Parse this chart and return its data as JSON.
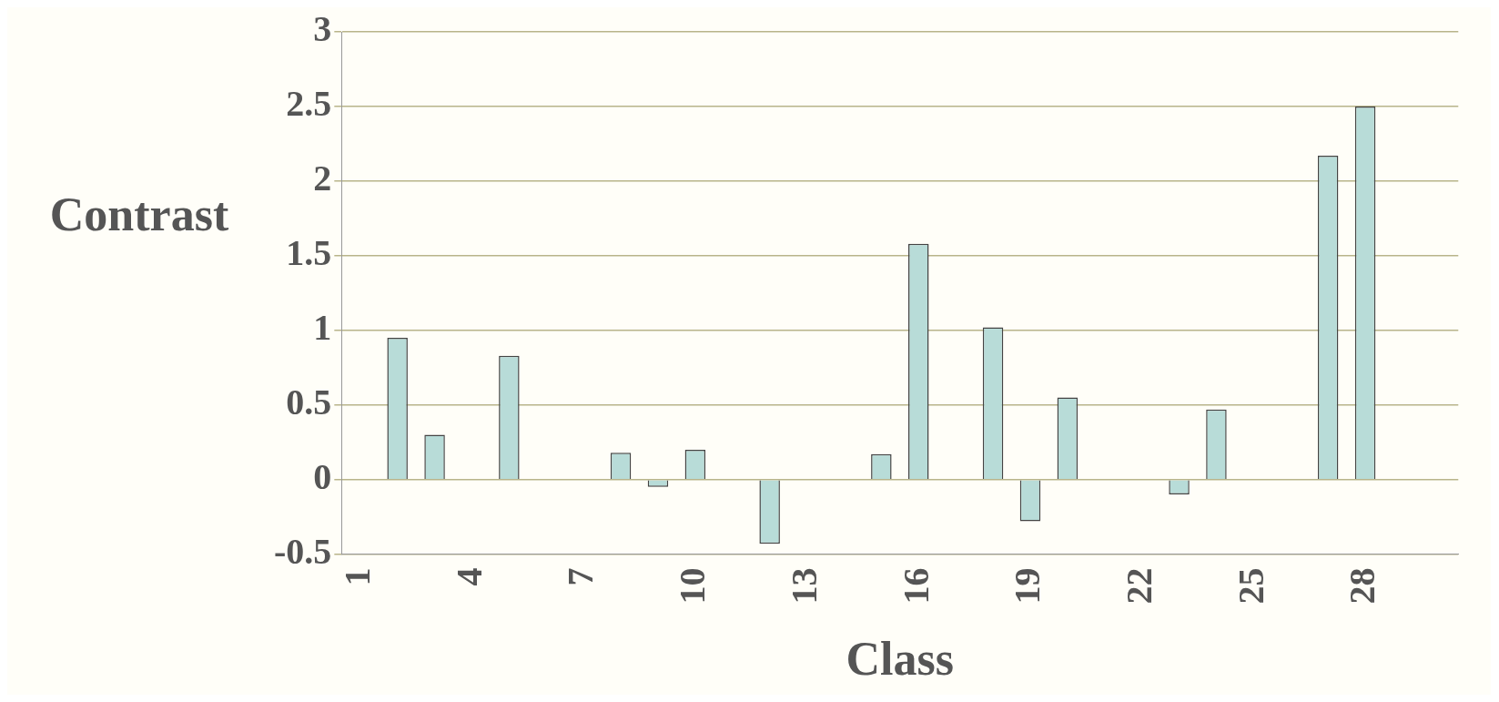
{
  "chart_data": {
    "type": "bar",
    "xlabel": "Class",
    "ylabel": "Contrast",
    "categories": [
      "1",
      null,
      null,
      "4",
      null,
      null,
      "7",
      null,
      null,
      "10",
      null,
      null,
      "13",
      null,
      null,
      "16",
      null,
      null,
      "19",
      null,
      null,
      "22",
      null,
      null,
      "25",
      null,
      null,
      "28",
      null,
      null
    ],
    "values": [
      0,
      0.95,
      0.3,
      0,
      0.83,
      0,
      0,
      0.18,
      -0.05,
      0.2,
      0,
      -0.43,
      0,
      0,
      0.17,
      1.58,
      0,
      1.02,
      -0.28,
      0.55,
      0,
      0,
      -0.1,
      0.47,
      0,
      0,
      2.17,
      2.5,
      0,
      0
    ],
    "color": "#b8dcd8",
    "ylim": [
      -0.5,
      3
    ],
    "yticks": [
      -0.5,
      0,
      0.5,
      1,
      1.5,
      2,
      2.5,
      3
    ],
    "grid": "y",
    "legend": false
  }
}
